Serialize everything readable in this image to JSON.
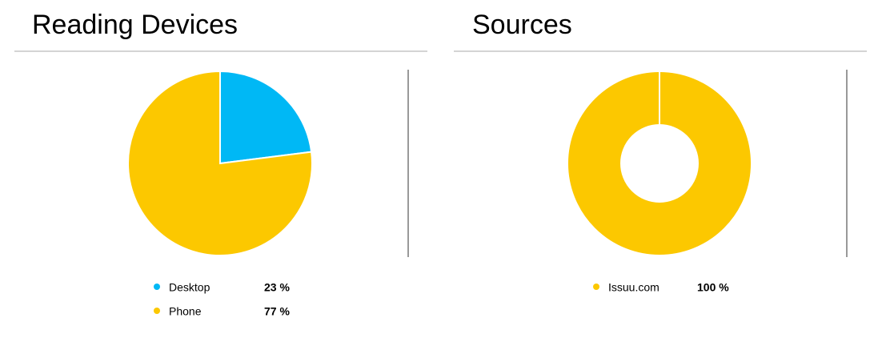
{
  "chart_data": [
    {
      "type": "pie",
      "title": "Reading Devices",
      "categories": [
        "Desktop",
        "Phone"
      ],
      "values": [
        23,
        77
      ],
      "value_labels": [
        "23 %",
        "77 %"
      ],
      "colors": [
        "#00b8f5",
        "#fcc800"
      ]
    },
    {
      "type": "donut",
      "title": "Sources",
      "categories": [
        "Issuu.com"
      ],
      "values": [
        100
      ],
      "value_labels": [
        "100 %"
      ],
      "colors": [
        "#fcc800"
      ]
    }
  ]
}
